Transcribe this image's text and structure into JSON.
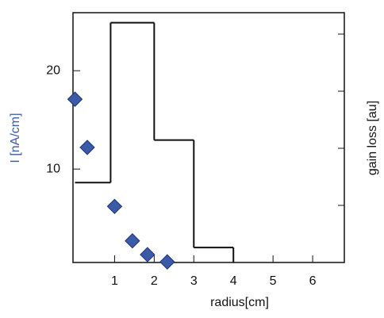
{
  "chart_data": {
    "type": "scatter",
    "x_label": "radius[cm]",
    "y_label": "I [nA/cm]",
    "y2_label": "gain loss [au]",
    "xlim": [
      -0.05,
      6.8
    ],
    "xticks": [
      1,
      2,
      3,
      4,
      5,
      6
    ],
    "ylim": [
      0.5,
      25.9
    ],
    "yticks": [
      10,
      20
    ],
    "y2lim": [
      0,
      1
    ],
    "series": [
      {
        "name": "I [nA/cm]",
        "type": "scatter",
        "color": "#3b5ba9",
        "x": [
          0,
          0.31,
          1.0,
          1.45,
          1.83,
          2.33
        ],
        "values": [
          17.1,
          12.2,
          6.2,
          2.7,
          1.3,
          0.56
        ]
      },
      {
        "name": "gain loss [au]",
        "type": "step",
        "axis": "y2",
        "color": "#111111",
        "x": [
          0,
          0.9,
          2.0,
          3.0,
          4.0
        ],
        "values": [
          0.32,
          0.96,
          0.49,
          0.06,
          0
        ]
      }
    ]
  }
}
